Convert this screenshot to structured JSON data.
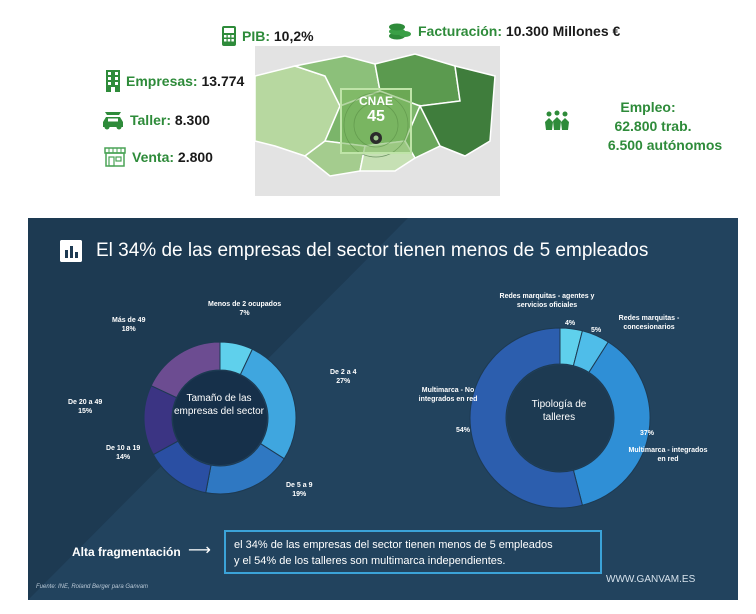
{
  "infographic": {
    "pib": {
      "label": "PIB:",
      "value": "10,2%"
    },
    "facturacion": {
      "label": "Facturación:",
      "value": "10.300 Millones €"
    },
    "empresas": {
      "label": "Empresas:",
      "value": "13.774"
    },
    "taller": {
      "label": "Taller:",
      "value": "8.300"
    },
    "venta": {
      "label": "Venta:",
      "value": "2.800"
    },
    "cnae": {
      "title": "CNAE",
      "number": "45"
    },
    "empleo": {
      "label": "Empleo:",
      "line1": "62.800 trab.",
      "line2": "6.500 autónomos"
    },
    "colors": {
      "green": "#2e8b3a",
      "map_dark": "#4c8c4a",
      "map_light": "#a8d08d"
    },
    "icons": [
      "calculator-icon",
      "coins-icon",
      "building-icon",
      "car-icon",
      "shop-icon",
      "people-icon"
    ]
  },
  "panel": {
    "headline": "El 34% de las empresas del sector tienen menos de 5 empleados",
    "fragmentation_label": "Alta fragmentación",
    "summary_line1": "el 34% de las empresas del sector tienen menos de 5 empleados",
    "summary_line2": "y el 54% de los talleres son multimarca independientes.",
    "source": "Fuente: INE, Roland Berger para Ganvam",
    "website": "WWW.GANVAM.ES"
  },
  "chart_data": [
    {
      "type": "pie",
      "donut": true,
      "title": "Tamaño de las empresas del sector",
      "categories": [
        "Menos de 2 ocupados",
        "De 2 a 4",
        "De 5 a 9",
        "De 10 a 19",
        "De 20 a 49",
        "Más de 49"
      ],
      "values": [
        7,
        27,
        19,
        14,
        15,
        18
      ],
      "value_labels": [
        "7%",
        "27%",
        "19%",
        "14%",
        "15%",
        "18%"
      ],
      "colors": [
        "#5fd0ec",
        "#3fa6df",
        "#2f78c2",
        "#2a4fa3",
        "#3b3483",
        "#6c4c91"
      ]
    },
    {
      "type": "pie",
      "donut": true,
      "title": "Tipología de talleres",
      "categories": [
        "Redes marquitas - agentes y servicios oficiales",
        "Redes marquitas - concesionarios",
        "Multimarca - integrados en red",
        "Multimarca - No integrados en red"
      ],
      "values": [
        4,
        5,
        37,
        54
      ],
      "value_labels": [
        "4%",
        "5%",
        "37%",
        "54%"
      ],
      "colors": [
        "#5fd0ec",
        "#4fbde9",
        "#2f8fd6",
        "#2c5eae"
      ]
    }
  ]
}
